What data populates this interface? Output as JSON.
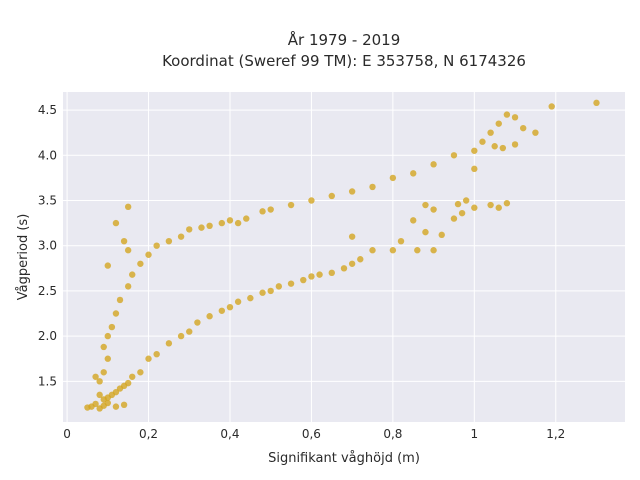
{
  "chart_data": {
    "type": "scatter",
    "title_line1": "År 1979 - 2019",
    "title_line2": "Koordinat (Sweref 99 TM): E 353758, N 6174326",
    "xlabel": "Signifikant våghöjd (m)",
    "ylabel": "Vågperiod (s)",
    "xlim": [
      -0.01,
      1.37
    ],
    "ylim": [
      1.05,
      4.7
    ],
    "xticks": [
      0,
      0.2,
      0.4,
      0.6,
      0.8,
      1.0,
      1.2
    ],
    "xtick_labels": [
      "0",
      "0,2",
      "0,4",
      "0,6",
      "0,8",
      "1",
      "1,2"
    ],
    "yticks": [
      1.5,
      2.0,
      2.5,
      3.0,
      3.5,
      4.0,
      4.5
    ],
    "ytick_labels": [
      "1.5",
      "2.0",
      "2.5",
      "3.0",
      "3.5",
      "4.0",
      "4.5"
    ],
    "grid": true,
    "colors": {
      "marker": "#D4A41C",
      "plot_background": "#E9E9F1",
      "grid": "#ffffff"
    },
    "series": [
      {
        "values": [
          [
            0.05,
            1.21
          ],
          [
            0.06,
            1.22
          ],
          [
            0.07,
            1.25
          ],
          [
            0.08,
            1.2
          ],
          [
            0.09,
            1.23
          ],
          [
            0.1,
            1.26
          ],
          [
            0.12,
            1.22
          ],
          [
            0.14,
            1.24
          ],
          [
            0.07,
            1.55
          ],
          [
            0.08,
            1.5
          ],
          [
            0.09,
            1.6
          ],
          [
            0.09,
            1.88
          ],
          [
            0.1,
            1.75
          ],
          [
            0.1,
            2.0
          ],
          [
            0.11,
            2.1
          ],
          [
            0.12,
            2.25
          ],
          [
            0.13,
            2.4
          ],
          [
            0.1,
            2.78
          ],
          [
            0.12,
            3.25
          ],
          [
            0.15,
            3.43
          ],
          [
            0.14,
            3.05
          ],
          [
            0.15,
            2.95
          ],
          [
            0.15,
            2.55
          ],
          [
            0.16,
            2.68
          ],
          [
            0.18,
            2.8
          ],
          [
            0.2,
            2.9
          ],
          [
            0.22,
            3.0
          ],
          [
            0.25,
            3.05
          ],
          [
            0.28,
            3.1
          ],
          [
            0.3,
            3.18
          ],
          [
            0.33,
            3.2
          ],
          [
            0.35,
            3.22
          ],
          [
            0.38,
            3.25
          ],
          [
            0.4,
            3.28
          ],
          [
            0.42,
            3.25
          ],
          [
            0.44,
            3.3
          ],
          [
            0.48,
            3.38
          ],
          [
            0.5,
            3.4
          ],
          [
            0.55,
            3.45
          ],
          [
            0.6,
            3.5
          ],
          [
            0.65,
            3.55
          ],
          [
            0.7,
            3.6
          ],
          [
            0.75,
            3.65
          ],
          [
            0.8,
            3.75
          ],
          [
            0.85,
            3.8
          ],
          [
            0.9,
            3.9
          ],
          [
            0.95,
            4.0
          ],
          [
            1.0,
            4.05
          ],
          [
            1.0,
            3.85
          ],
          [
            1.02,
            4.15
          ],
          [
            1.04,
            4.25
          ],
          [
            1.06,
            4.35
          ],
          [
            1.08,
            4.45
          ],
          [
            1.1,
            4.42
          ],
          [
            1.12,
            4.3
          ],
          [
            1.15,
            4.25
          ],
          [
            1.19,
            4.54
          ],
          [
            1.3,
            4.58
          ],
          [
            1.05,
            4.1
          ],
          [
            1.07,
            4.08
          ],
          [
            1.1,
            4.12
          ],
          [
            1.04,
            3.45
          ],
          [
            1.06,
            3.42
          ],
          [
            1.08,
            3.47
          ],
          [
            1.0,
            3.42
          ],
          [
            0.98,
            3.5
          ],
          [
            0.96,
            3.46
          ],
          [
            0.9,
            3.4
          ],
          [
            0.88,
            3.45
          ],
          [
            0.85,
            3.28
          ],
          [
            0.88,
            3.15
          ],
          [
            0.92,
            3.12
          ],
          [
            0.95,
            3.3
          ],
          [
            0.97,
            3.36
          ],
          [
            0.9,
            2.95
          ],
          [
            0.86,
            2.95
          ],
          [
            0.82,
            3.05
          ],
          [
            0.8,
            2.95
          ],
          [
            0.75,
            2.95
          ],
          [
            0.72,
            2.85
          ],
          [
            0.7,
            3.1
          ],
          [
            0.7,
            2.8
          ],
          [
            0.68,
            2.75
          ],
          [
            0.65,
            2.7
          ],
          [
            0.62,
            2.68
          ],
          [
            0.6,
            2.66
          ],
          [
            0.58,
            2.62
          ],
          [
            0.55,
            2.58
          ],
          [
            0.52,
            2.55
          ],
          [
            0.5,
            2.5
          ],
          [
            0.48,
            2.48
          ],
          [
            0.45,
            2.42
          ],
          [
            0.42,
            2.38
          ],
          [
            0.4,
            2.32
          ],
          [
            0.38,
            2.28
          ],
          [
            0.35,
            2.22
          ],
          [
            0.32,
            2.15
          ],
          [
            0.3,
            2.05
          ],
          [
            0.28,
            2.0
          ],
          [
            0.25,
            1.92
          ],
          [
            0.22,
            1.8
          ],
          [
            0.2,
            1.75
          ],
          [
            0.18,
            1.6
          ],
          [
            0.16,
            1.55
          ],
          [
            0.15,
            1.48
          ],
          [
            0.14,
            1.45
          ],
          [
            0.13,
            1.42
          ],
          [
            0.12,
            1.38
          ],
          [
            0.11,
            1.35
          ],
          [
            0.1,
            1.32
          ],
          [
            0.09,
            1.3
          ],
          [
            0.08,
            1.35
          ]
        ]
      }
    ]
  }
}
